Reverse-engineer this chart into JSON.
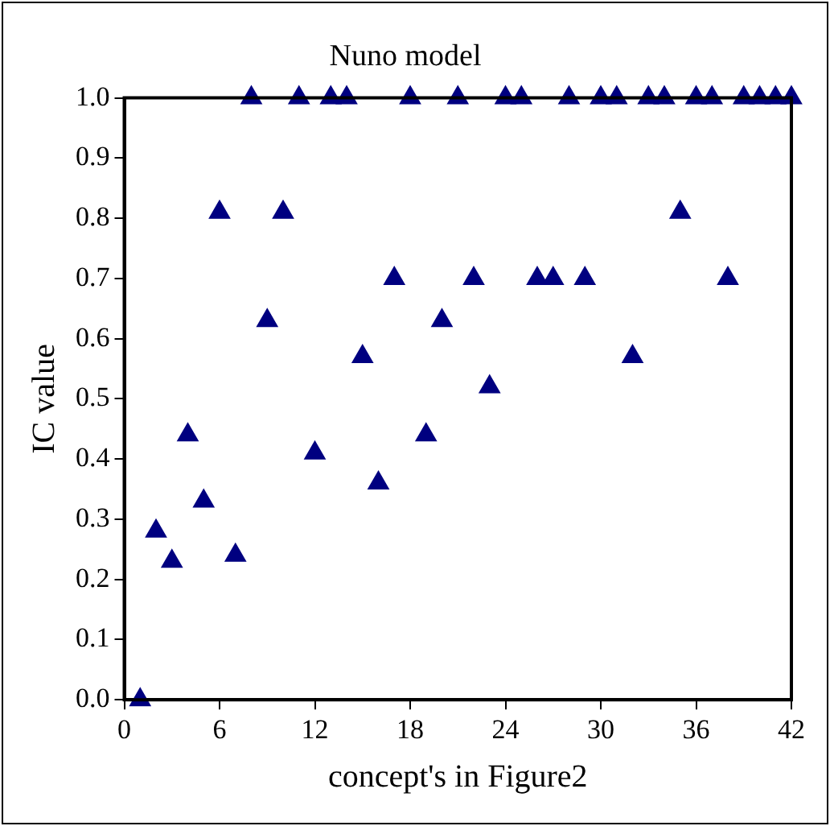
{
  "chart_data": {
    "type": "scatter",
    "title": "Nuno model",
    "xlabel": "concept's in Figure2",
    "ylabel": "IC value",
    "x": [
      1,
      2,
      3,
      4,
      5,
      6,
      7,
      8,
      9,
      10,
      11,
      12,
      13,
      14,
      15,
      16,
      17,
      18,
      19,
      20,
      21,
      22,
      23,
      24,
      25,
      26,
      27,
      28,
      29,
      30,
      31,
      32,
      33,
      34,
      35,
      36,
      37,
      38,
      39,
      40,
      41,
      42
    ],
    "series": [
      {
        "color": "#000080",
        "values": [
          0.0,
          0.28,
          0.23,
          0.44,
          0.33,
          0.81,
          0.24,
          1.0,
          0.63,
          0.81,
          1.0,
          0.41,
          1.0,
          1.0,
          0.57,
          0.36,
          0.7,
          1.0,
          0.44,
          0.63,
          1.0,
          0.7,
          0.52,
          1.0,
          1.0,
          0.7,
          0.7,
          1.0,
          0.7,
          1.0,
          1.0,
          0.57,
          1.0,
          1.0,
          0.81,
          1.0,
          1.0,
          0.7,
          1.0,
          1.0,
          1.0,
          1.0
        ]
      }
    ],
    "xlim": [
      0,
      42
    ],
    "xticks": [
      0,
      6,
      12,
      18,
      24,
      30,
      36,
      42
    ],
    "ylim": [
      0,
      1
    ],
    "yticks": [
      {
        "value": 0,
        "label": "0.0"
      },
      {
        "value": 0.1,
        "label": "0.1"
      },
      {
        "value": 0.2,
        "label": "0.2"
      },
      {
        "value": 0.3,
        "label": "0.3"
      },
      {
        "value": 0.4,
        "label": "0.4"
      },
      {
        "value": 0.5,
        "label": "0.5"
      },
      {
        "value": 0.6,
        "label": "0.6"
      },
      {
        "value": 0.7,
        "label": "0.7"
      },
      {
        "value": 0.8,
        "label": "0.8"
      },
      {
        "value": 0.9,
        "label": "0.9"
      },
      {
        "value": 1,
        "label": "1.0"
      }
    ],
    "grid": false,
    "legend": false,
    "marker": "triangle"
  }
}
